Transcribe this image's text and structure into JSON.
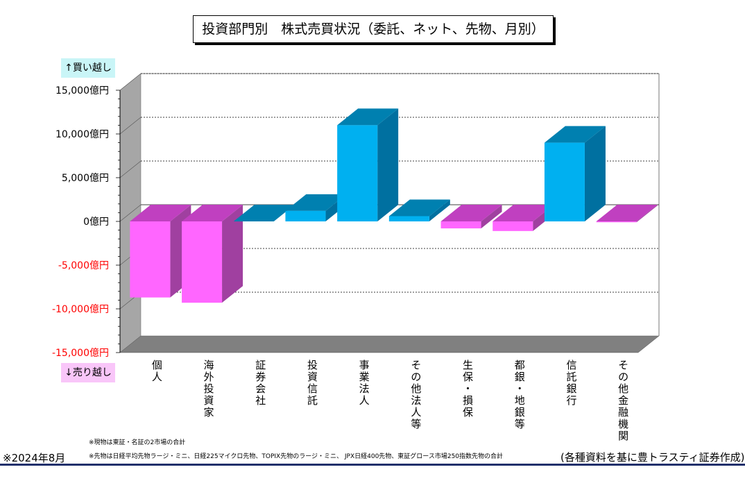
{
  "title": "投資部門別　株式売買状況（委託、ネット、先物、月別）",
  "buy_label": "↑買い越し",
  "sell_label": "↓売り越し",
  "notes": {
    "genbutsu": "※現物は東証・名証の2市場の合計",
    "sakimono": "※先物は日経平均先物ラージ・ミニ、日経225マイクロ先物、TOPIX先物のラージ・ミニ、 JPX日経400先物、東証グロース市場250指数先物の合計",
    "date": "※2024年8月",
    "source": "(各種資料を基に豊トラスティ証券作成)"
  },
  "colors": {
    "positive_front": "#00b0f0",
    "positive_top": "#0080b0",
    "positive_side": "#0070a0",
    "negative_front": "#ff66ff",
    "negative_top": "#c040c0",
    "negative_side": "#a040a0",
    "negative_tick_text": "#ff0000",
    "wall": "#a6a6a6",
    "floor": "#808080"
  },
  "chart_data": {
    "type": "bar",
    "title": "投資部門別　株式売買状況（委託、ネット、先物、月別）",
    "ylim": [
      -15000,
      15000
    ],
    "yticks": [
      15000,
      10000,
      5000,
      0,
      -5000,
      -10000,
      -15000
    ],
    "ytick_labels": [
      "15,000億円",
      "10,000億円",
      "5,000億円",
      "0億円",
      "-5,000億円",
      "-10,000億円",
      "-15,000億円"
    ],
    "grid": true,
    "categories": [
      "個人",
      "海外投資家",
      "証券会社",
      "投資信託",
      "事業法人",
      "その他法人等",
      "生保・損保",
      "都銀・地銀等",
      "信託銀行",
      "その他金融機関"
    ],
    "values": [
      -8700,
      -9300,
      0,
      1200,
      11000,
      600,
      -800,
      -1100,
      9000,
      -100
    ]
  }
}
